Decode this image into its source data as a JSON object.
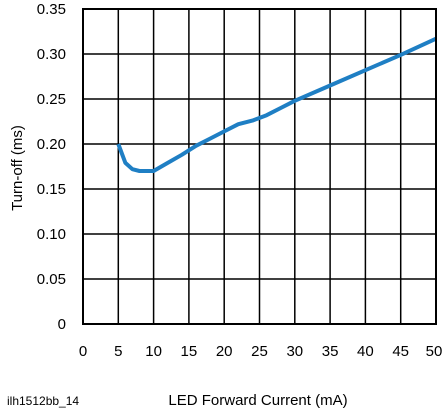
{
  "figure_id": "ilh1512bb_14",
  "chart_data": {
    "type": "line",
    "title": "",
    "xlabel": "LED Forward Current (mA)",
    "ylabel": "Turn-off (ms)",
    "xlim": [
      0,
      50
    ],
    "ylim": [
      0,
      0.35
    ],
    "x_ticks": [
      "0",
      "5",
      "10",
      "15",
      "20",
      "25",
      "30",
      "35",
      "40",
      "45",
      "50"
    ],
    "y_ticks": [
      "0",
      "0.05",
      "0.10",
      "0.15",
      "0.20",
      "0.25",
      "0.30",
      "0.35"
    ],
    "grid": true,
    "line_color": "#1f7fc4",
    "series": [
      {
        "x": [
          5,
          6,
          7,
          8,
          10,
          12,
          14,
          16,
          18,
          20,
          22,
          24,
          26,
          28,
          30,
          35,
          40,
          45,
          50
        ],
        "y": [
          0.2,
          0.179,
          0.172,
          0.17,
          0.17,
          0.179,
          0.188,
          0.198,
          0.206,
          0.214,
          0.222,
          0.226,
          0.232,
          0.24,
          0.248,
          0.265,
          0.282,
          0.299,
          0.317
        ]
      }
    ]
  }
}
